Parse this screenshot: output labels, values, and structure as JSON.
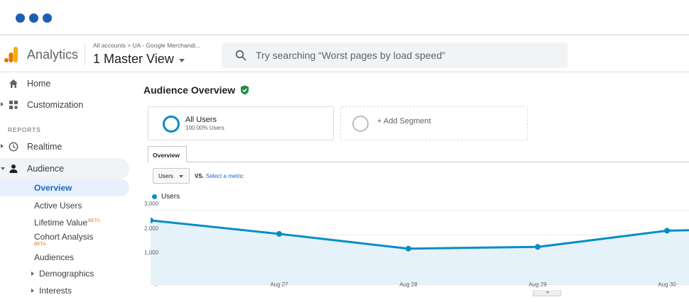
{
  "window": {
    "controls": [
      "dot",
      "dot",
      "dot"
    ],
    "control_color": "#1a5fb4"
  },
  "header": {
    "app_name": "Analytics",
    "breadcrumb": "All accounts > UA - Google Merchandi...",
    "view": "1 Master View",
    "search_placeholder": "Try searching “Worst pages by load speed”",
    "logo_colors": [
      "#f9ab00",
      "#e37400"
    ]
  },
  "sidebar": {
    "home": "Home",
    "customization": "Customization",
    "reports_header": "REPORTS",
    "realtime": "Realtime",
    "audience": "Audience",
    "audience_items": {
      "overview": "Overview",
      "active_users": "Active Users",
      "lifetime_value": "Lifetime Value",
      "lifetime_value_badge": "BETA",
      "cohort_analysis": "Cohort Analysis",
      "cohort_analysis_badge": "BETA",
      "audiences": "Audiences",
      "demographics": "Demographics",
      "interests": "Interests"
    }
  },
  "main": {
    "title": "Audience Overview",
    "segments": {
      "all_users": "All Users",
      "all_users_pct": "100.00% Users",
      "add_segment": "+ Add Segment"
    },
    "tab": "Overview",
    "metric": "Users",
    "vs": "VS.",
    "select_metric": "Select a metric",
    "legend": "Users",
    "accent": "#058dc7"
  },
  "chart_data": {
    "type": "line",
    "series": [
      {
        "name": "Users",
        "values": [
          2600,
          2050,
          1450,
          1520,
          2180,
          2200
        ]
      }
    ],
    "x": [
      "...",
      "Aug 27",
      "Aug 28",
      "Aug 29",
      "Aug 30",
      ""
    ],
    "y_ticks": [
      "3,000",
      "2,000",
      "1,000"
    ],
    "ylim": [
      0,
      3000
    ],
    "grid": true,
    "legend": "top-left"
  }
}
